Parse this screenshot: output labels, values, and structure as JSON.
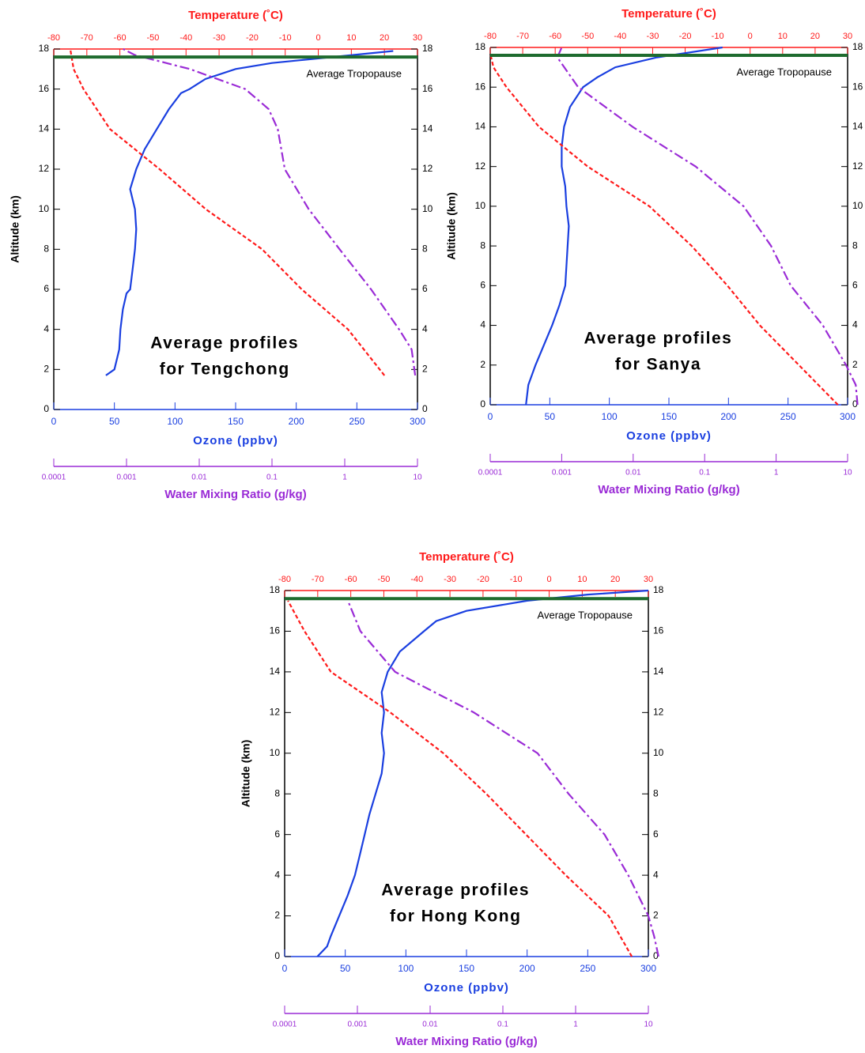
{
  "chart_data": [
    {
      "type": "line",
      "title": "Average profiles",
      "subtitle": "for Tengchong",
      "ylabel": "Altitude (km)",
      "xlabel": "Ozone (ppbv)",
      "x2label": "Temperature (˚C)",
      "x3label": "Water Mixing Ratio (g/kg)",
      "ylim": [
        0,
        18
      ],
      "yticks": [
        0,
        2,
        4,
        6,
        8,
        10,
        12,
        14,
        16,
        18
      ],
      "xlim": [
        0,
        300
      ],
      "xticks": [
        0,
        50,
        100,
        150,
        200,
        250,
        300
      ],
      "x2lim": [
        -80,
        30
      ],
      "x2ticks": [
        -80,
        -70,
        -60,
        -50,
        -40,
        -30,
        -20,
        -10,
        0,
        10,
        20,
        30
      ],
      "x3lim": [
        0.0001,
        10
      ],
      "x3ticks": [
        0.0001,
        0.001,
        0.01,
        0.1,
        1,
        10
      ],
      "x3scale": "log",
      "tropopause": 17.6,
      "tropopause_color": "#1e6b2e",
      "annotation": "Average Tropopause",
      "series": [
        {
          "axis": "x",
          "color": "#1a3fe0",
          "dash": "solid",
          "y": [
            1.7,
            2,
            3,
            4,
            5,
            5.8,
            6,
            7,
            8,
            9,
            10,
            11,
            12,
            13,
            14,
            15,
            15.8,
            16,
            16.5,
            17,
            17.3,
            17.6,
            17.9
          ],
          "values": [
            43,
            50,
            54,
            55,
            57,
            60,
            63,
            65,
            67,
            68,
            67,
            63,
            68,
            75,
            85,
            95,
            105,
            112,
            125,
            150,
            180,
            230,
            280
          ]
        },
        {
          "axis": "x2",
          "color": "#ff1a1a",
          "dash": "dashed",
          "y": [
            1.7,
            4,
            6,
            8,
            10,
            12,
            14,
            16,
            17,
            18
          ],
          "values": [
            20,
            9,
            -5,
            -17,
            -34,
            -48,
            -63,
            -71,
            -74,
            -75
          ]
        },
        {
          "axis": "x3",
          "color": "#9a2bd6",
          "dash": "dashdot",
          "y": [
            1.7,
            3,
            4,
            6,
            8,
            10,
            12,
            14,
            15,
            16,
            17,
            17.7,
            18
          ],
          "values": [
            9.3,
            8.3,
            5.6,
            2.3,
            0.85,
            0.32,
            0.15,
            0.12,
            0.09,
            0.043,
            0.0074,
            0.0013,
            0.0009
          ]
        }
      ]
    },
    {
      "type": "line",
      "title": "Average profiles",
      "subtitle": "for Sanya",
      "ylabel": "Altitude (km)",
      "xlabel": "Ozone (ppbv)",
      "x2label": "Temperature (˚C)",
      "x3label": "Water Mixing Ratio (g/kg)",
      "ylim": [
        0,
        18
      ],
      "yticks": [
        0,
        2,
        4,
        6,
        8,
        10,
        12,
        14,
        16,
        18
      ],
      "xlim": [
        0,
        300
      ],
      "xticks": [
        0,
        50,
        100,
        150,
        200,
        250,
        300
      ],
      "x2lim": [
        -80,
        30
      ],
      "x2ticks": [
        -80,
        -70,
        -60,
        -50,
        -40,
        -30,
        -20,
        -10,
        0,
        10,
        20,
        30
      ],
      "x3lim": [
        0.0001,
        10
      ],
      "x3ticks": [
        0.0001,
        0.001,
        0.01,
        0.1,
        1,
        10
      ],
      "x3scale": "log",
      "tropopause": 17.6,
      "tropopause_color": "#1e6b2e",
      "annotation": "Average Tropopause",
      "series": [
        {
          "axis": "x",
          "color": "#1a3fe0",
          "dash": "solid",
          "y": [
            0,
            1,
            2,
            3,
            4,
            5,
            6,
            7,
            8,
            9,
            10,
            11,
            12,
            13,
            14,
            15,
            16,
            16.5,
            17,
            17.5,
            18
          ],
          "values": [
            30,
            32,
            38,
            45,
            52,
            58,
            63,
            64,
            65,
            66,
            64,
            63,
            60,
            60,
            62,
            67,
            78,
            90,
            105,
            140,
            195
          ]
        },
        {
          "axis": "x2",
          "color": "#ff1a1a",
          "dash": "dashed",
          "y": [
            0,
            2,
            4,
            6,
            8,
            10,
            12,
            14,
            16,
            17,
            17.7
          ],
          "values": [
            27,
            15,
            3,
            -7,
            -18,
            -31,
            -50,
            -65,
            -75,
            -79,
            -80
          ]
        },
        {
          "axis": "x3",
          "color": "#9a2bd6",
          "dash": "dashdot",
          "y": [
            0,
            1,
            2,
            4,
            6,
            8,
            10,
            12,
            14,
            16,
            17.5,
            18
          ],
          "values": [
            13.8,
            13,
            9.5,
            4.5,
            1.6,
            0.85,
            0.35,
            0.075,
            0.0098,
            0.0017,
            0.00087,
            0.001
          ]
        }
      ]
    },
    {
      "type": "line",
      "title": "Average profiles",
      "subtitle": "for Hong Kong",
      "ylabel": "Altitude (km)",
      "xlabel": "Ozone (ppbv)",
      "x2label": "Temperature (˚C)",
      "x3label": "Water Mixing Ratio (g/kg)",
      "ylim": [
        0,
        18
      ],
      "yticks": [
        0,
        2,
        4,
        6,
        8,
        10,
        12,
        14,
        16,
        18
      ],
      "xlim": [
        0,
        300
      ],
      "xticks": [
        0,
        50,
        100,
        150,
        200,
        250,
        300
      ],
      "x2lim": [
        -80,
        30
      ],
      "x2ticks": [
        -80,
        -70,
        -60,
        -50,
        -40,
        -30,
        -20,
        -10,
        0,
        10,
        20,
        30
      ],
      "x3lim": [
        0.0001,
        10
      ],
      "x3ticks": [
        0.0001,
        0.001,
        0.01,
        0.1,
        1,
        10
      ],
      "x3scale": "log",
      "tropopause": 17.6,
      "tropopause_color": "#1e6b2e",
      "annotation": "Average Tropopause",
      "series": [
        {
          "axis": "x",
          "color": "#1a3fe0",
          "dash": "solid",
          "y": [
            0,
            0.5,
            1,
            2,
            3,
            4,
            5,
            6,
            7,
            8,
            9,
            10,
            11,
            12,
            13,
            14,
            15,
            16,
            16.5,
            17,
            17.5,
            17.8,
            18
          ],
          "values": [
            27,
            35,
            38,
            45,
            52,
            58,
            62,
            66,
            70,
            75,
            80,
            82,
            80,
            82,
            80,
            85,
            95,
            115,
            125,
            150,
            200,
            250,
            300
          ]
        },
        {
          "axis": "x2",
          "color": "#ff1a1a",
          "dash": "dashed",
          "y": [
            0,
            2,
            4,
            6,
            8,
            10,
            12,
            14,
            16,
            17.5
          ],
          "values": [
            25,
            18,
            5,
            -7,
            -19,
            -32,
            -48,
            -66,
            -74,
            -79
          ]
        },
        {
          "axis": "x3",
          "color": "#9a2bd6",
          "dash": "dashdot",
          "y": [
            0,
            1,
            2,
            4,
            6,
            8,
            10,
            12,
            14,
            16,
            17.5
          ],
          "values": [
            13.8,
            12,
            10,
            5.3,
            2.5,
            0.8,
            0.3,
            0.04,
            0.0033,
            0.0011,
            0.00074
          ]
        }
      ]
    }
  ]
}
